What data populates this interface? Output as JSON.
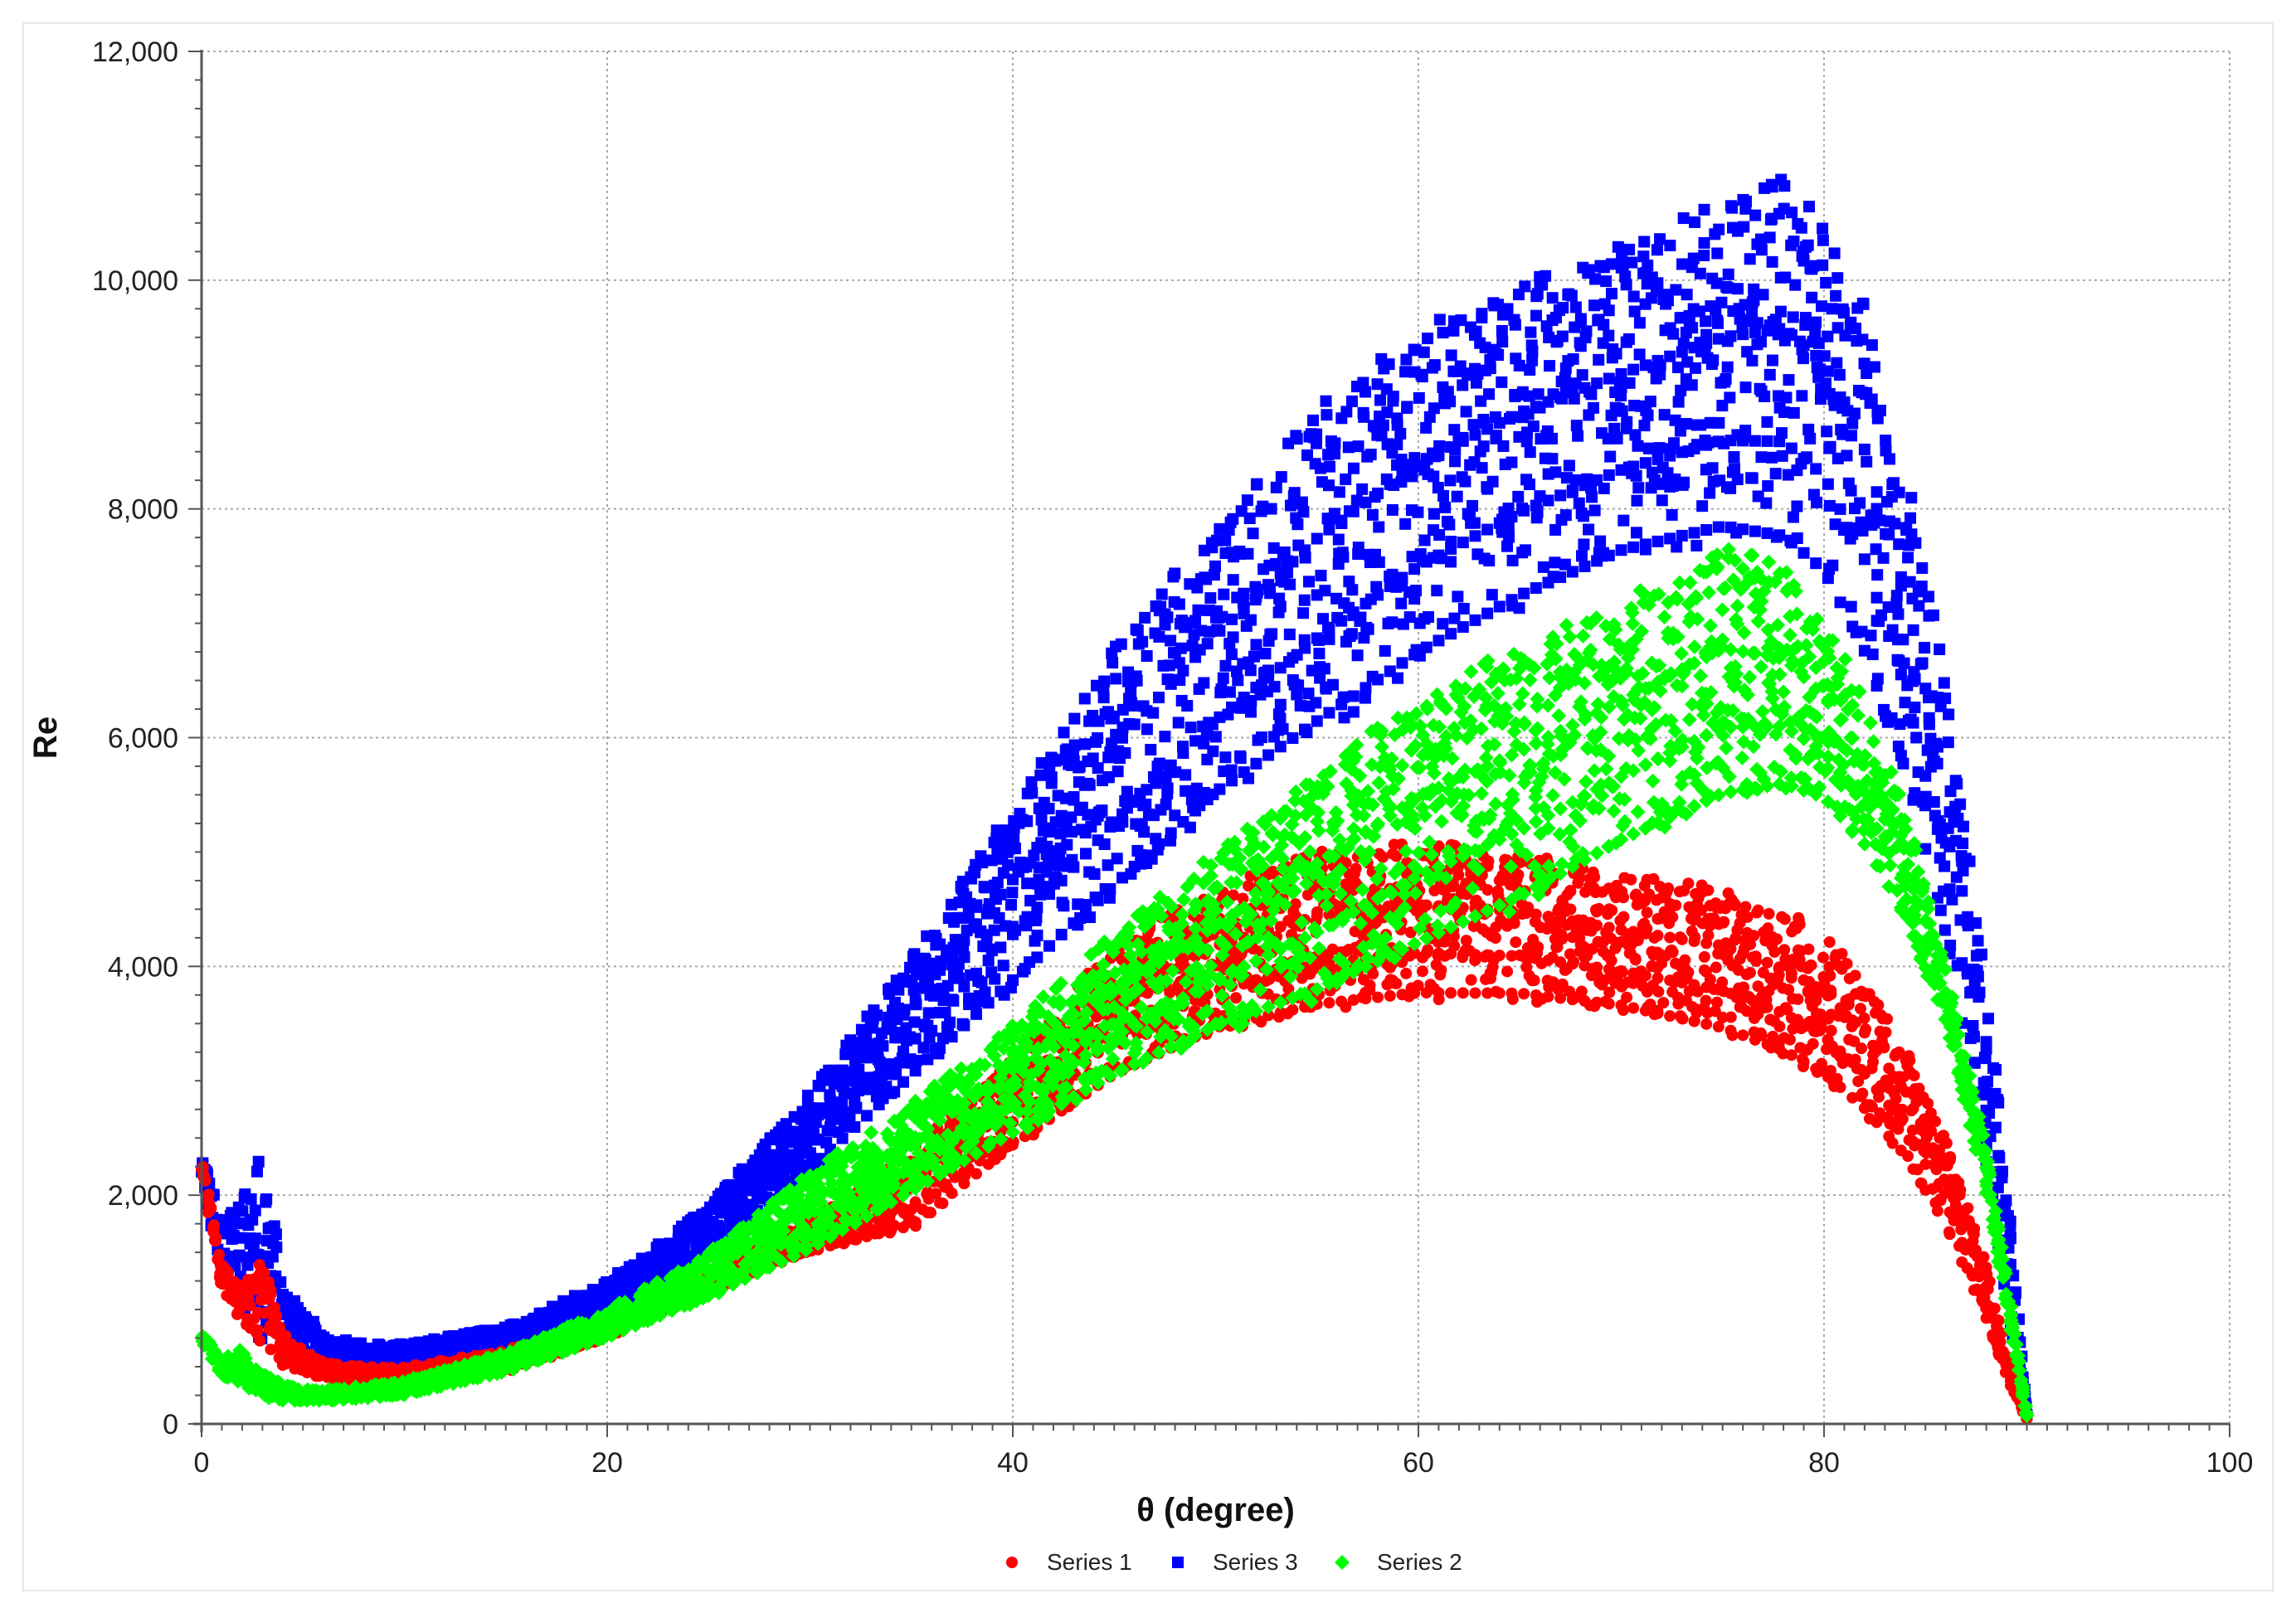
{
  "chart_data": {
    "type": "scatter",
    "title": "",
    "xlabel": "θ (degree)",
    "ylabel": "Re",
    "xlim": [
      0,
      100
    ],
    "ylim": [
      0,
      12000
    ],
    "x_ticks": [
      0,
      20,
      40,
      60,
      80,
      100
    ],
    "x_tick_labels": [
      "0",
      "20",
      "40",
      "60",
      "80",
      "100"
    ],
    "y_ticks": [
      0,
      2000,
      4000,
      6000,
      8000,
      10000,
      12000
    ],
    "y_tick_labels": [
      "0",
      "2,000",
      "4,000",
      "6,000",
      "8,000",
      "10,000",
      "12,000"
    ],
    "grid": true,
    "legend_position": "bottom-center",
    "legend": [
      {
        "name": "Series 1",
        "color": "#ff0000",
        "marker": "circle"
      },
      {
        "name": "Series 3",
        "color": "#0000ff",
        "marker": "square"
      },
      {
        "name": "Series 2",
        "color": "#00ff00",
        "marker": "diamond"
      }
    ],
    "series": [
      {
        "name": "Series 3",
        "color": "#0000ff",
        "marker": "square",
        "envelope": {
          "x": [
            0,
            1,
            2,
            3,
            4,
            5,
            6,
            8,
            10,
            15,
            20,
            25,
            30,
            35,
            40,
            45,
            50,
            55,
            60,
            65,
            70,
            75,
            78,
            80,
            82,
            84,
            86,
            88,
            89,
            90
          ],
          "lower": [
            2200,
            1200,
            1000,
            700,
            600,
            500,
            450,
            450,
            480,
            600,
            950,
            1500,
            2200,
            3000,
            3800,
            4600,
            5400,
            6000,
            6600,
            7100,
            7500,
            7700,
            7600,
            7300,
            6600,
            5600,
            4200,
            2200,
            1000,
            50
          ],
          "upper": [
            2350,
            1800,
            2000,
            2500,
            1300,
            1000,
            800,
            700,
            700,
            850,
            1250,
            1900,
            2900,
            4100,
            5400,
            6800,
            7900,
            8900,
            9600,
            10000,
            10300,
            10700,
            10900,
            10600,
            9800,
            8400,
            6500,
            4000,
            2200,
            100
          ]
        }
      },
      {
        "name": "Series 2",
        "color": "#00ff00",
        "marker": "diamond",
        "envelope": {
          "x": [
            0,
            1,
            2,
            3,
            4,
            5,
            6,
            8,
            10,
            15,
            20,
            25,
            30,
            35,
            40,
            45,
            50,
            55,
            60,
            65,
            70,
            75,
            78,
            80,
            82,
            84,
            86,
            88,
            89,
            90
          ],
          "lower": [
            700,
            400,
            350,
            200,
            200,
            200,
            200,
            220,
            250,
            450,
            750,
            1100,
            1500,
            2000,
            2500,
            3000,
            3400,
            3700,
            4100,
            4500,
            5000,
            5400,
            5500,
            5400,
            5000,
            4400,
            3500,
            2000,
            1000,
            50
          ],
          "upper": [
            800,
            600,
            650,
            450,
            350,
            300,
            300,
            330,
            380,
            620,
            1000,
            1500,
            2200,
            2800,
            3500,
            4300,
            5000,
            5700,
            6400,
            6800,
            7200,
            7700,
            7500,
            7000,
            6400,
            5400,
            4000,
            2400,
            1300,
            100
          ]
        }
      },
      {
        "name": "Series 1",
        "color": "#ff0000",
        "marker": "circle",
        "envelope": {
          "x": [
            0,
            1,
            2,
            3,
            4,
            5,
            6,
            8,
            10,
            15,
            20,
            25,
            30,
            35,
            40,
            45,
            50,
            55,
            60,
            65,
            70,
            75,
            78,
            80,
            82,
            84,
            86,
            88,
            89,
            90
          ],
          "lower": [
            2200,
            1100,
            900,
            700,
            500,
            450,
            400,
            350,
            350,
            450,
            750,
            1150,
            1500,
            1700,
            2400,
            3000,
            3400,
            3600,
            3700,
            3700,
            3600,
            3400,
            3200,
            3000,
            2700,
            2300,
            1700,
            900,
            400,
            30
          ],
          "upper": [
            2350,
            1400,
            1200,
            1500,
            800,
            650,
            550,
            500,
            500,
            650,
            900,
            1350,
            1800,
            2400,
            3200,
            4200,
            4700,
            5000,
            5100,
            5000,
            4800,
            4700,
            4500,
            4300,
            3900,
            3300,
            2500,
            1400,
            600,
            60
          ]
        }
      }
    ]
  }
}
